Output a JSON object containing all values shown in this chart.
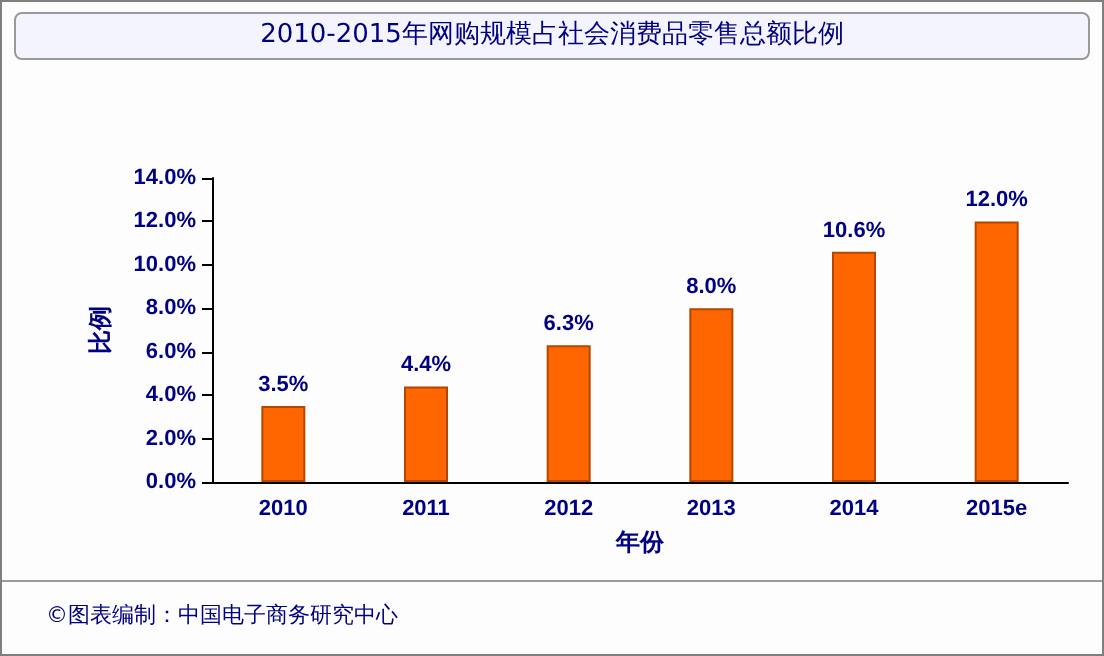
{
  "chart_data": {
    "type": "bar",
    "title": "2010-2015年网购规模占社会消费品零售总额比例",
    "xlabel": "年份",
    "ylabel": "比例",
    "categories": [
      "2010",
      "2011",
      "2012",
      "2013",
      "2014",
      "2015e"
    ],
    "values": [
      3.5,
      4.4,
      6.3,
      8.0,
      10.6,
      12.0
    ],
    "value_labels": [
      "3.5%",
      "4.4%",
      "6.3%",
      "8.0%",
      "10.6%",
      "12.0%"
    ],
    "color": "#ff6600",
    "ylim": [
      0,
      14
    ],
    "yticks": [
      {
        "value": 0,
        "label": "0.0%"
      },
      {
        "value": 2,
        "label": "2.0%"
      },
      {
        "value": 4,
        "label": "4.0%"
      },
      {
        "value": 6,
        "label": "6.0%"
      },
      {
        "value": 8,
        "label": "8.0%"
      },
      {
        "value": 10,
        "label": "10.0%"
      },
      {
        "value": 12,
        "label": "12.0%"
      },
      {
        "value": 14,
        "label": "14.0%"
      }
    ],
    "grid": false,
    "annotations": [
      "©图表编制：中国电子商务研究中心"
    ]
  }
}
